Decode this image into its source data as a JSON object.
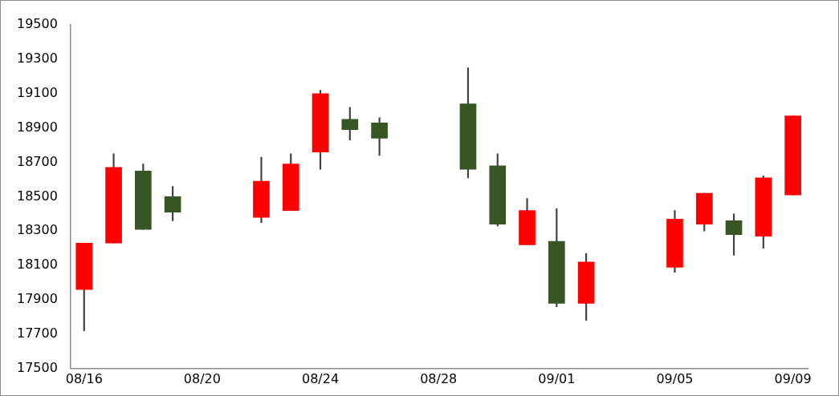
{
  "chart_data": {
    "type": "candlestick",
    "x": [
      "--08-16",
      "--08-17",
      "--08-18",
      "--08-19",
      "--08-22",
      "--08-23",
      "--08-24",
      "--08-25",
      "--08-26",
      "--08-29",
      "--08-30",
      "--08-31",
      "--09-01",
      "--09-02",
      "--09-05",
      "--09-06",
      "--09-07",
      "--09-08",
      "--09-09"
    ],
    "ohlc": [
      [
        17960,
        18230,
        17720,
        18230
      ],
      [
        18230,
        18750,
        18230,
        18670
      ],
      [
        18650,
        18690,
        18310,
        18310
      ],
      [
        18500,
        18560,
        18360,
        18410
      ],
      [
        18380,
        18730,
        18350,
        18590
      ],
      [
        18420,
        18750,
        18420,
        18690
      ],
      [
        18760,
        19120,
        18660,
        19100
      ],
      [
        18950,
        19020,
        18830,
        18890
      ],
      [
        18930,
        18960,
        18740,
        18840
      ],
      [
        19040,
        19250,
        18610,
        18660
      ],
      [
        18680,
        18750,
        18330,
        18340
      ],
      [
        18220,
        18490,
        18220,
        18420
      ],
      [
        18240,
        18430,
        17860,
        17880
      ],
      [
        17880,
        18170,
        17780,
        18120
      ],
      [
        18090,
        18420,
        18060,
        18370
      ],
      [
        18340,
        18520,
        18300,
        18520
      ],
      [
        18360,
        18400,
        18160,
        18280
      ],
      [
        18270,
        18620,
        18200,
        18610
      ],
      [
        18510,
        18970,
        18510,
        18970
      ]
    ],
    "colors": [
      "#ff0000",
      "#ff0000",
      "#375623",
      "#375623",
      "#ff0000",
      "#ff0000",
      "#ff0000",
      "#375623",
      "#375623",
      "#375623",
      "#375623",
      "#ff0000",
      "#375623",
      "#ff0000",
      "#ff0000",
      "#ff0000",
      "#375623",
      "#ff0000",
      "#ff0000"
    ],
    "xlim": [
      "--08-15T13:00",
      "--09-09T12:00"
    ],
    "xticks": [
      {
        "value": "--08-16",
        "label": "08/16"
      },
      {
        "value": "--08-20",
        "label": "08/20"
      },
      {
        "value": "--08-24",
        "label": "08/24"
      },
      {
        "value": "--08-28",
        "label": "08/28"
      },
      {
        "value": "--09-01",
        "label": "09/01"
      },
      {
        "value": "--09-05",
        "label": "09/05"
      },
      {
        "value": "--09-09",
        "label": "09/09"
      }
    ],
    "ylim": [
      17500,
      19500
    ],
    "yticks": [
      17500,
      17700,
      17900,
      18100,
      18300,
      18500,
      18700,
      18900,
      19100,
      19300,
      19500
    ],
    "grid": false,
    "legend": false
  }
}
